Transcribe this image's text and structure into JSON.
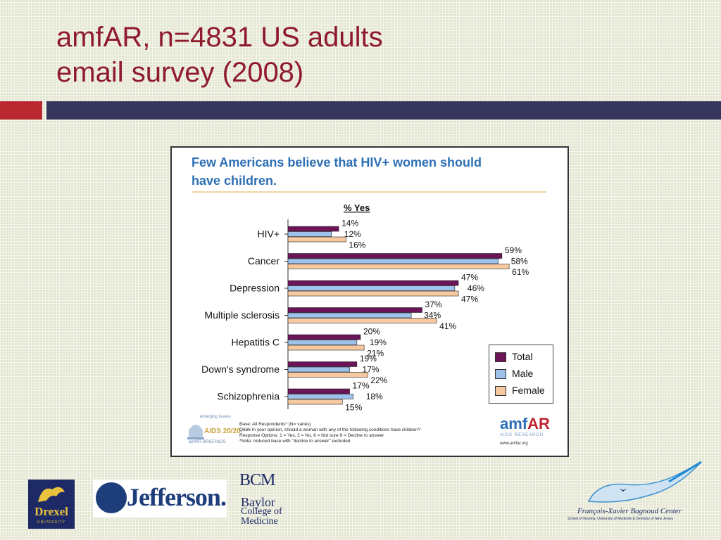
{
  "slide": {
    "title_line1": "amfAR, n=4831 US adults",
    "title_line2": "email survey (2008)"
  },
  "chart_heading_line1": "Few Americans believe that HIV+ women should",
  "chart_heading_line2": "have children.",
  "colors": {
    "title": "#8f1a2e",
    "total": "#6b1457",
    "male": "#9fc2ea",
    "female": "#f7c9a0",
    "heading": "#2d6fb5"
  },
  "chart_data": {
    "type": "bar",
    "orientation": "horizontal",
    "title": "% Yes",
    "categories": [
      "HIV+",
      "Cancer",
      "Depression",
      "Multiple sclerosis",
      "Hepatitis C",
      "Down's syndrome",
      "Schizophrenia"
    ],
    "series": [
      {
        "name": "Total",
        "values": [
          14,
          59,
          47,
          37,
          20,
          19,
          17
        ],
        "labels": [
          "14%",
          "59%",
          "47%",
          "37%",
          "20%",
          "19%",
          "17%"
        ]
      },
      {
        "name": "Male",
        "values": [
          12,
          58,
          46,
          34,
          19,
          17,
          18
        ],
        "labels": [
          "12%",
          "58%",
          "46%",
          "34%",
          "19%",
          "17%",
          "18%"
        ]
      },
      {
        "name": "Female",
        "values": [
          16,
          61,
          47,
          41,
          21,
          22,
          15
        ],
        "labels": [
          "16%",
          "61%",
          "47%",
          "41%",
          "21%",
          "22%",
          "15%"
        ]
      }
    ],
    "legend": "right",
    "xlim": [
      0,
      70
    ]
  },
  "legend": {
    "total": "Total",
    "male": "Male",
    "female": "Female"
  },
  "footnote": {
    "line1": "Base: All Respondents* (N= varies)",
    "line2": "Q666  In your opinion, should a woman with any of the following conditions have children?",
    "line3": "Response Options: 1 = Yes, 2 = No, 8 = Not sure 9 = Decline to answer",
    "line4": "*Note: reduced base with \"decline to answer\" excluded"
  },
  "aids_logo": {
    "top": "emerging issues",
    "mid": "AIDS 20/20",
    "bottom": "amfAR BRIEFINGS"
  },
  "amfar_logo": {
    "name_a": "amf",
    "name_b": "AR",
    "sub": "AIDS RESEARCH",
    "url": "www.amfar.org"
  },
  "logos": {
    "drexel_name": "Drexel",
    "drexel_sub": "UNIVERSITY",
    "jefferson": "Jefferson.",
    "bcm_abbr": "BCM",
    "bcm_line1": "Baylor",
    "bcm_line2": "College of",
    "bcm_line3": "Medicine",
    "fxb_name": "François-Xavier Bagnoud Center",
    "fxb_sub": "School of Nursing, University of Medicine & Dentistry of New Jersey"
  }
}
